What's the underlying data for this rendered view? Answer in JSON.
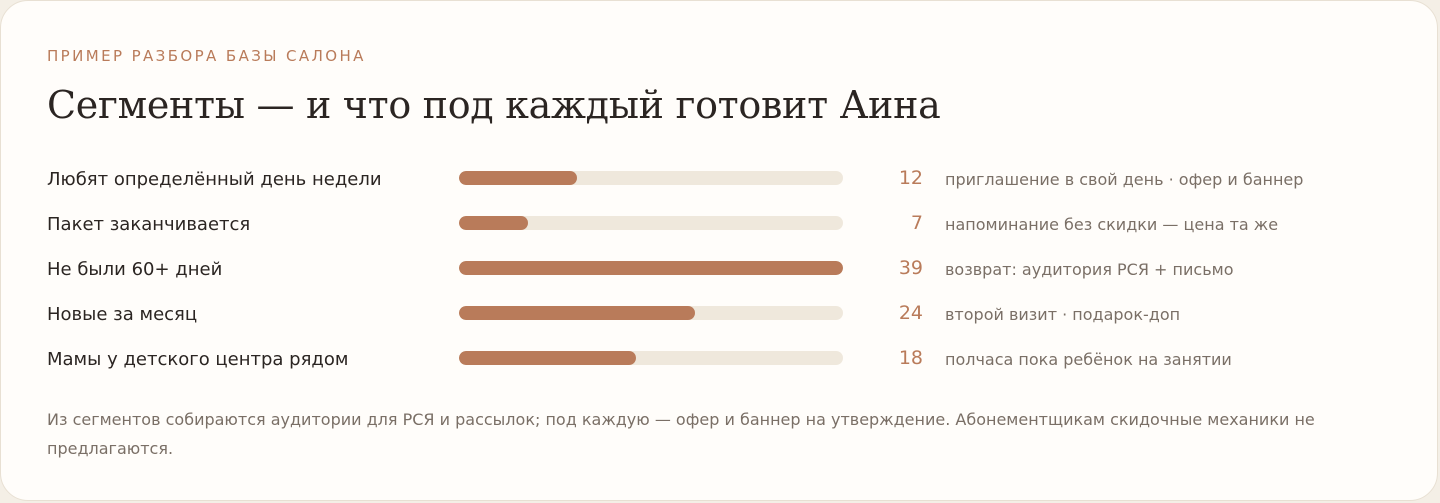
{
  "card": {
    "eyebrow": "ПРИМЕР РАЗБОРА БАЗЫ САЛОНА",
    "title": "Сегменты — и что под каждый готовит Аина",
    "footnote": "Из сегментов собираются аудитории для РСЯ и рассылок; под каждую — офер и баннер на утверждение. Абонементщикам скидочные механики не предлагаются."
  },
  "colors": {
    "accent": "#b97b5a",
    "track": "#efe8dc",
    "text": "#2b2522",
    "muted": "#7a6f66"
  },
  "chart_data": {
    "type": "bar",
    "orientation": "horizontal",
    "categories": [
      "Любят определённый день недели",
      "Пакет заканчивается",
      "Не были 60+ дней",
      "Новые за месяц",
      "Мамы у детского центра рядом"
    ],
    "values": [
      12,
      7,
      39,
      24,
      18
    ],
    "annotations": [
      "приглашение в свой день · офер и баннер",
      "напоминание без скидки — цена та же",
      "возврат: аудитория РСЯ + письмо",
      "второй визит · подарок-доп",
      "полчаса пока ребёнок на занятии"
    ],
    "xlim": [
      0,
      39
    ]
  }
}
